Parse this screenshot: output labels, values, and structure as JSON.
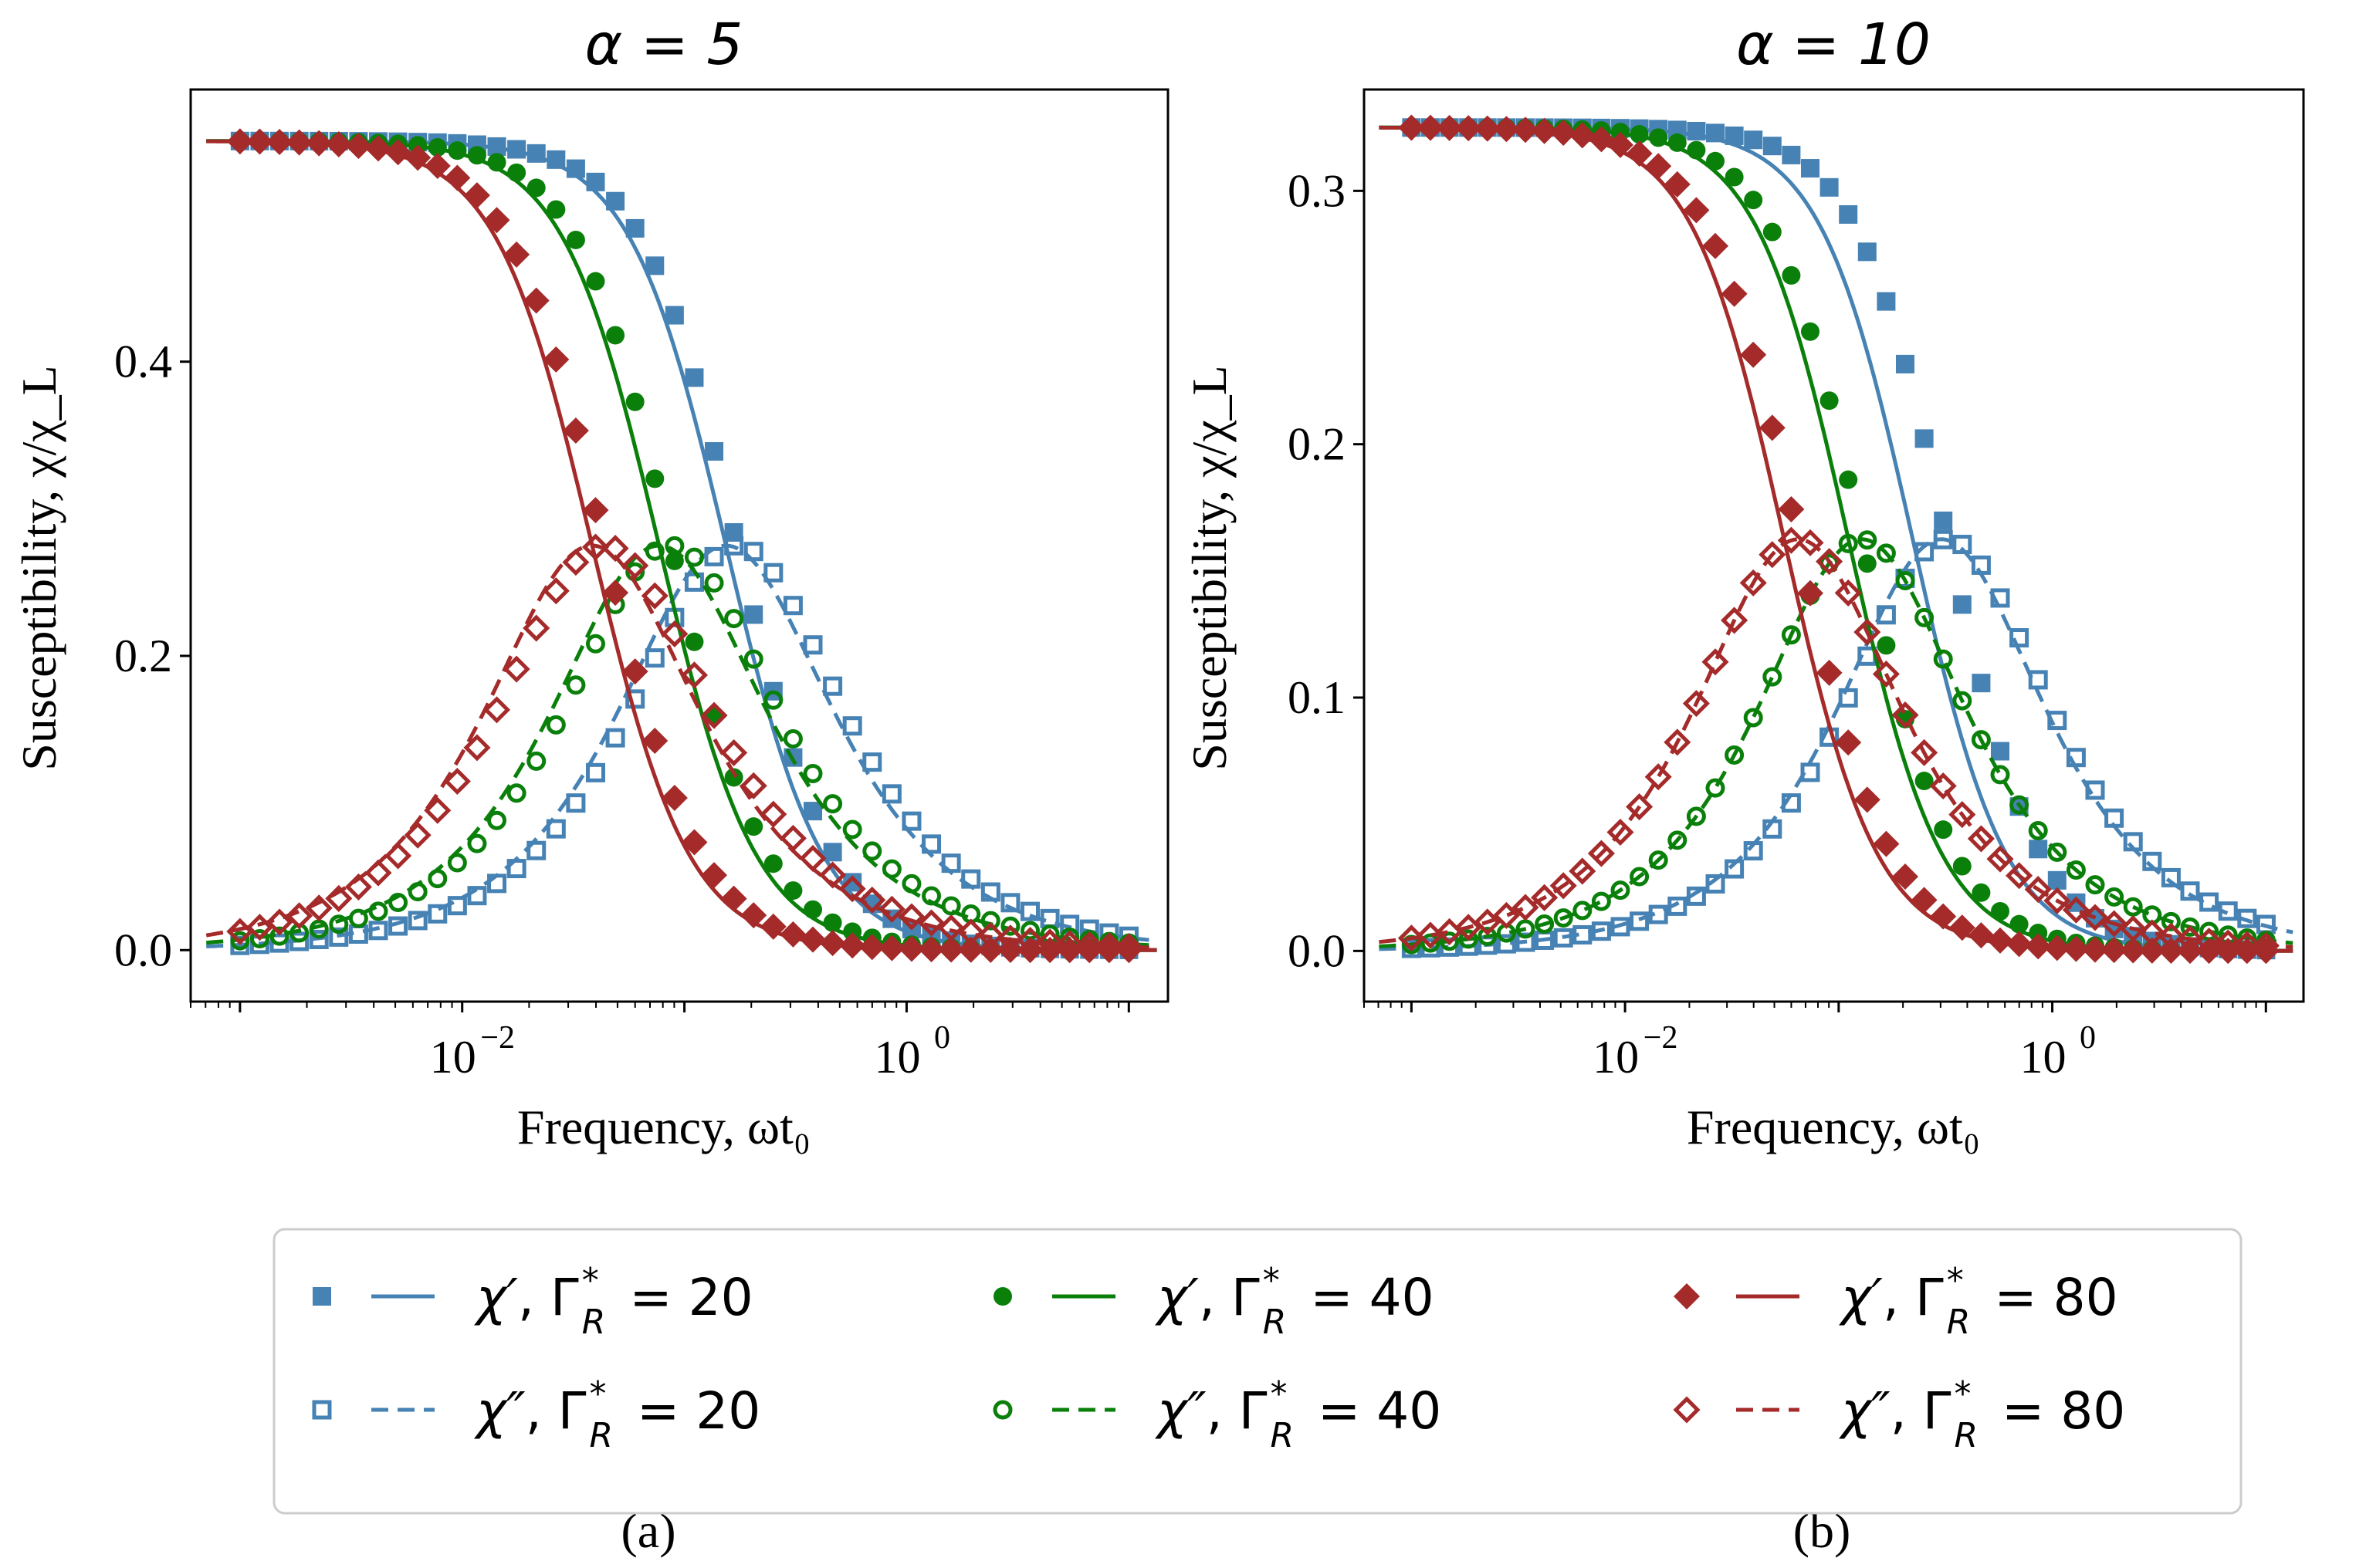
{
  "colors": {
    "g20": "#4682b4",
    "g40": "#0a800a",
    "g80": "#a52a2a",
    "axis": "#000000"
  },
  "chart_data": [
    {
      "type": "scatter",
      "title": "α = 5",
      "xlabel": "Frequency, ωt₀",
      "ylabel": "Susceptibility, χ/χ_L",
      "xscale": "log",
      "xlim": [
        0.0006,
        15
      ],
      "ylim": [
        -0.035,
        0.585
      ],
      "yticks": [
        "0.0",
        "0.2",
        "0.4"
      ],
      "ytick_values": [
        0,
        0.2,
        0.4
      ],
      "xticks": [
        "10",
        "10"
      ],
      "xtick_exponents": [
        "−2",
        "0"
      ],
      "xtick_values": [
        0.01,
        1
      ],
      "chi0": 0.55,
      "series": [
        {
          "Gamma": 20,
          "real": {
            "tau_line": 6.5,
            "tau_points": 5.8
          },
          "imag": {
            "tau_line": 6.5,
            "tau_points": 5.8
          }
        },
        {
          "Gamma": 40,
          "real": {
            "tau_line": 13.0,
            "tau_points": 11.5
          },
          "imag": {
            "tau_line": 13.0,
            "tau_points": 11.5
          }
        },
        {
          "Gamma": 80,
          "real": {
            "tau_line": 26.0,
            "tau_points": 23.0
          },
          "imag": {
            "tau_line": 26.0,
            "tau_points": 23.0
          }
        }
      ],
      "sublabel": "(a)"
    },
    {
      "type": "scatter",
      "title": "α = 10",
      "xlabel": "Frequency, ωt₀",
      "ylabel": "Susceptibility, χ/χ_L",
      "xscale": "log",
      "xlim": [
        0.0006,
        15
      ],
      "ylim": [
        -0.02,
        0.34
      ],
      "yticks": [
        "0.0",
        "0.1",
        "0.2",
        "0.3"
      ],
      "ytick_values": [
        0,
        0.1,
        0.2,
        0.3
      ],
      "xticks": [
        "10",
        "10"
      ],
      "xtick_exponents": [
        "−2",
        "0"
      ],
      "xtick_values": [
        0.01,
        1
      ],
      "chi0": 0.325,
      "series": [
        {
          "Gamma": 20,
          "real": {
            "tau_line": 4.5,
            "tau_points": 3.1
          },
          "imag": {
            "tau_line": 3.3,
            "tau_points": 3.1
          }
        },
        {
          "Gamma": 40,
          "real": {
            "tau_line": 9.0,
            "tau_points": 7.8
          },
          "imag": {
            "tau_line": 7.8,
            "tau_points": 7.8
          }
        },
        {
          "Gamma": 80,
          "real": {
            "tau_line": 18.0,
            "tau_points": 15.5
          },
          "imag": {
            "tau_line": 15.5,
            "tau_points": 15.5
          }
        }
      ],
      "sublabel": "(b)"
    }
  ],
  "legend": {
    "placement": "bottom",
    "entries": [
      {
        "group": "g20",
        "marker": "square-filled",
        "style": "solid",
        "part": "χ′",
        "gamma": "= 20"
      },
      {
        "group": "g40",
        "marker": "circle-filled",
        "style": "solid",
        "part": "χ′",
        "gamma": "= 40"
      },
      {
        "group": "g80",
        "marker": "diamond-filled",
        "style": "solid",
        "part": "χ′",
        "gamma": "= 80"
      },
      {
        "group": "g20",
        "marker": "square-open",
        "style": "dashed",
        "part": "χ″",
        "gamma": "= 20"
      },
      {
        "group": "g40",
        "marker": "circle-open",
        "style": "dashed",
        "part": "χ″",
        "gamma": "= 40"
      },
      {
        "group": "g80",
        "marker": "diamond-open",
        "style": "dashed",
        "part": "χ″",
        "gamma": "= 80"
      }
    ],
    "gamma_symbol": "Γ",
    "gamma_sub": "R",
    "gamma_sup": "*"
  }
}
